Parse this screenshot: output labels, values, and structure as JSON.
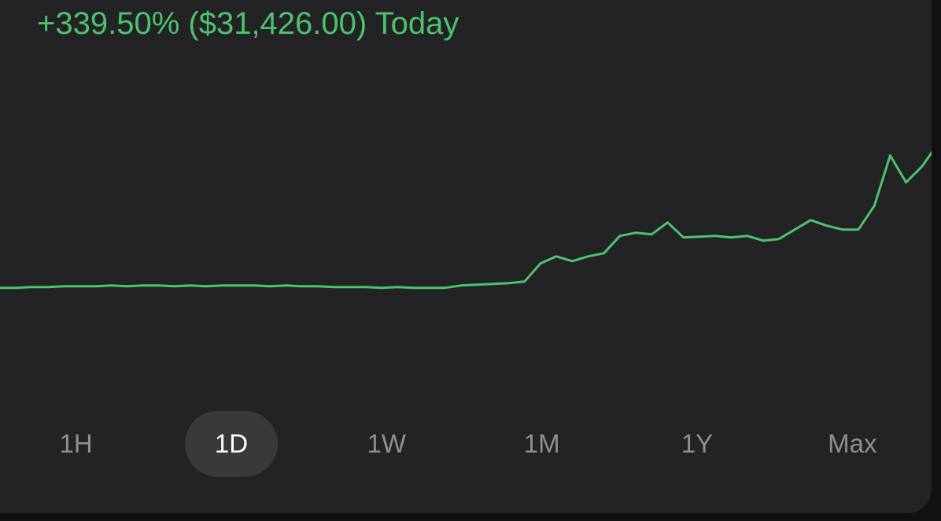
{
  "header": {
    "change": "+339.50% ($31,426.00) Today"
  },
  "chart_data": {
    "type": "line",
    "color": "#4cc46b",
    "ylim": [
      -10000,
      60000
    ],
    "values": [
      9257,
      9257,
      9430,
      9430,
      9600,
      9600,
      9600,
      9770,
      9600,
      9770,
      9770,
      9600,
      9770,
      9600,
      9770,
      9770,
      9770,
      9600,
      9770,
      9600,
      9600,
      9430,
      9430,
      9430,
      9260,
      9430,
      9260,
      9260,
      9260,
      9770,
      9940,
      10110,
      10290,
      10630,
      14580,
      16120,
      15090,
      16120,
      16810,
      20590,
      21280,
      20930,
      23510,
      20250,
      20420,
      20590,
      20250,
      20590,
      19560,
      19900,
      21960,
      24020,
      22820,
      21960,
      21960,
      27110,
      38100,
      32260,
      35700,
      40680
    ]
  },
  "range_tabs": {
    "options": [
      "1H",
      "1D",
      "1W",
      "1M",
      "1Y",
      "Max"
    ],
    "selected_index": 1
  }
}
